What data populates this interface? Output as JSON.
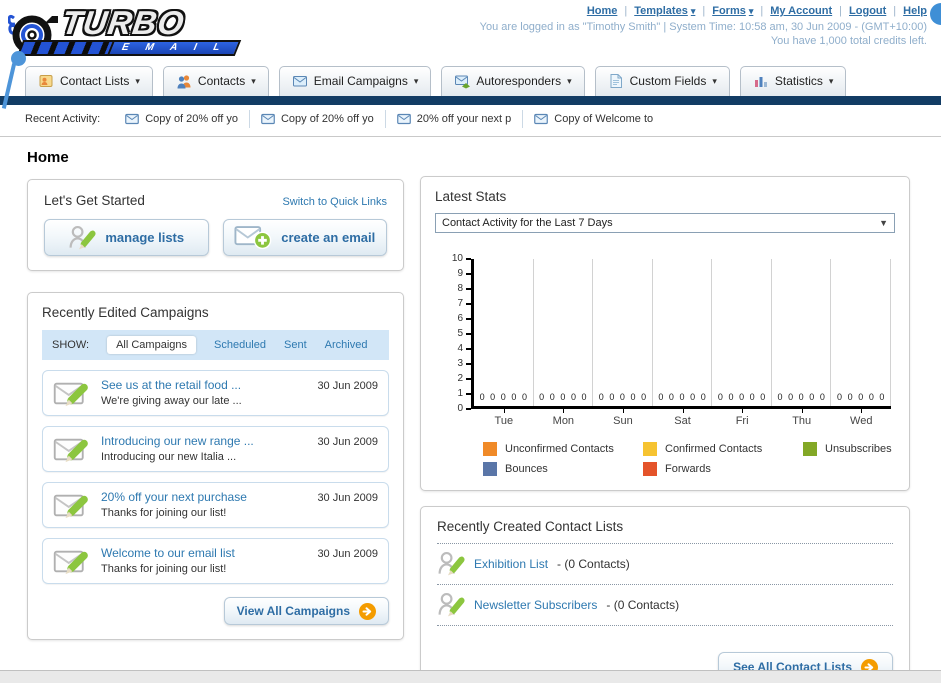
{
  "logo": {
    "brand": "TURBO",
    "sub": "E M A I L"
  },
  "icons": {
    "caret_down": "▾",
    "select_arrow": "▼"
  },
  "header": {
    "separator": "|",
    "links": [
      {
        "label": "Home"
      },
      {
        "label": "Templates",
        "caret": true
      },
      {
        "label": "Forms",
        "caret": true
      },
      {
        "label": "My Account"
      },
      {
        "label": "Logout"
      },
      {
        "label": "Help"
      }
    ],
    "login_line": "You are logged in as \"Timothy Smith\" | System Time: 10:58 am, 30 Jun 2009 - (GMT+10:00)",
    "credits_line": "You have 1,000 total credits left."
  },
  "nav": {
    "tabs": [
      {
        "label": "Contact Lists"
      },
      {
        "label": "Contacts"
      },
      {
        "label": "Email Campaigns"
      },
      {
        "label": "Autoresponders"
      },
      {
        "label": "Custom Fields"
      },
      {
        "label": "Statistics"
      }
    ]
  },
  "recent_activity": {
    "label": "Recent Activity:",
    "items": [
      {
        "label": "Copy of 20% off yo"
      },
      {
        "label": "Copy of 20% off yo"
      },
      {
        "label": "20% off your next p"
      },
      {
        "label": "Copy of Welcome to"
      }
    ]
  },
  "page_title": "Home",
  "get_started": {
    "title": "Let's Get Started",
    "switch_link": "Switch to Quick Links",
    "manage_lists_label": "manage lists",
    "create_email_label": "create an email"
  },
  "campaigns": {
    "title": "Recently Edited Campaigns",
    "show_label": "SHOW:",
    "filters": [
      {
        "label": "All Campaigns",
        "active": true
      },
      {
        "label": "Scheduled"
      },
      {
        "label": "Sent"
      },
      {
        "label": "Archived"
      }
    ],
    "items": [
      {
        "title": "See us at the retail food ...",
        "subtitle": "We're giving away our late ...",
        "date": "30 Jun 2009"
      },
      {
        "title": "Introducing our new range ...",
        "subtitle": "Introducing our new Italia ...",
        "date": "30 Jun 2009"
      },
      {
        "title": "20% off your next purchase",
        "subtitle": "Thanks for joining our list!",
        "date": "30 Jun 2009"
      },
      {
        "title": "Welcome to our email list",
        "subtitle": "Thanks for joining our list!",
        "date": "30 Jun 2009"
      }
    ],
    "view_all_label": "View All Campaigns"
  },
  "stats": {
    "title": "Latest Stats",
    "dropdown_value": "Contact Activity for the Last 7 Days"
  },
  "chart_data": {
    "type": "bar",
    "title": "Contact Activity for the Last 7 Days",
    "categories": [
      "Tue",
      "Mon",
      "Sun",
      "Sat",
      "Fri",
      "Thu",
      "Wed"
    ],
    "series": [
      {
        "name": "Unconfirmed Contacts",
        "color": "#F08A28",
        "values": [
          0,
          0,
          0,
          0,
          0,
          0,
          0
        ]
      },
      {
        "name": "Confirmed Contacts",
        "color": "#F6C331",
        "values": [
          0,
          0,
          0,
          0,
          0,
          0,
          0
        ]
      },
      {
        "name": "Unsubscribes",
        "color": "#83A826",
        "values": [
          0,
          0,
          0,
          0,
          0,
          0,
          0
        ]
      },
      {
        "name": "Bounces",
        "color": "#5A76A8",
        "values": [
          0,
          0,
          0,
          0,
          0,
          0,
          0
        ]
      },
      {
        "name": "Forwards",
        "color": "#E4532A",
        "values": [
          0,
          0,
          0,
          0,
          0,
          0,
          0
        ]
      }
    ],
    "ylim": [
      0,
      10
    ],
    "yticks": [
      10,
      9,
      8,
      7,
      6,
      5,
      4,
      3,
      2,
      1,
      0
    ],
    "grid": "vertical",
    "legend_position": "bottom",
    "value_labels_shown": true
  },
  "contact_lists": {
    "title": "Recently Created Contact Lists",
    "items": [
      {
        "name": "Exhibition List",
        "count_suffix": "- (0 Contacts)"
      },
      {
        "name": "Newsletter Subscribers",
        "count_suffix": "- (0 Contacts)"
      }
    ],
    "see_all_label": "See All Contact Lists"
  }
}
